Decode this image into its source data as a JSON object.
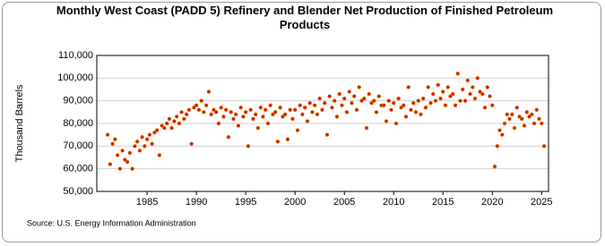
{
  "chart_data": {
    "type": "scatter",
    "title": "Monthly West Coast (PADD 5) Refinery and Blender Net Production of Finished Petroleum Products",
    "y_label": "Thousand Barrels",
    "source": "Source: U.S. Energy Information Administration",
    "color": "#cc2200",
    "grid": true,
    "xlim": [
      1979.9,
      2025.7
    ],
    "xticks": [
      1985,
      1990,
      1995,
      2000,
      2005,
      2010,
      2015,
      2020,
      2025
    ],
    "ylim": [
      50000,
      110000
    ],
    "yticks": [
      {
        "value": 50000,
        "label": "50,000"
      },
      {
        "value": 60000,
        "label": "60,000"
      },
      {
        "value": 70000,
        "label": "70,000"
      },
      {
        "value": 80000,
        "label": "80,000"
      },
      {
        "value": 90000,
        "label": "90,000"
      },
      {
        "value": 100000,
        "label": "100,000"
      },
      {
        "value": 110000,
        "label": "110,000"
      }
    ],
    "x": [
      1981,
      1981.25,
      1981.5,
      1981.75,
      1982,
      1982.25,
      1982.5,
      1982.75,
      1983,
      1983.25,
      1983.5,
      1983.75,
      1984,
      1984.25,
      1984.5,
      1984.75,
      1985,
      1985.25,
      1985.5,
      1985.75,
      1986,
      1986.25,
      1986.5,
      1986.75,
      1987,
      1987.25,
      1987.5,
      1987.75,
      1988,
      1988.25,
      1988.5,
      1988.75,
      1989,
      1989.25,
      1989.5,
      1989.75,
      1990,
      1990.25,
      1990.5,
      1990.75,
      1991,
      1991.25,
      1991.5,
      1991.75,
      1992,
      1992.25,
      1992.5,
      1992.75,
      1993,
      1993.25,
      1993.5,
      1993.75,
      1994,
      1994.25,
      1994.5,
      1994.75,
      1995,
      1995.25,
      1995.5,
      1995.75,
      1996,
      1996.25,
      1996.5,
      1996.75,
      1997,
      1997.25,
      1997.5,
      1997.75,
      1998,
      1998.25,
      1998.5,
      1998.75,
      1999,
      1999.25,
      1999.5,
      1999.75,
      2000,
      2000.25,
      2000.5,
      2000.75,
      2001,
      2001.25,
      2001.5,
      2001.75,
      2002,
      2002.25,
      2002.5,
      2002.75,
      2003,
      2003.25,
      2003.5,
      2003.75,
      2004,
      2004.25,
      2004.5,
      2004.75,
      2005,
      2005.25,
      2005.5,
      2005.75,
      2006,
      2006.25,
      2006.5,
      2006.75,
      2007,
      2007.25,
      2007.5,
      2007.75,
      2008,
      2008.25,
      2008.5,
      2008.75,
      2009,
      2009.25,
      2009.5,
      2009.75,
      2010,
      2010.25,
      2010.5,
      2010.75,
      2011,
      2011.25,
      2011.5,
      2011.75,
      2012,
      2012.25,
      2012.5,
      2012.75,
      2013,
      2013.25,
      2013.5,
      2013.75,
      2014,
      2014.25,
      2014.5,
      2014.75,
      2015,
      2015.25,
      2015.5,
      2015.75,
      2016,
      2016.25,
      2016.5,
      2016.75,
      2017,
      2017.25,
      2017.5,
      2017.75,
      2018,
      2018.25,
      2018.5,
      2018.75,
      2019,
      2019.25,
      2019.5,
      2019.75,
      2020,
      2020.25,
      2020.5,
      2020.75,
      2021,
      2021.25,
      2021.5,
      2021.75,
      2022,
      2022.25,
      2022.5,
      2022.75,
      2023,
      2023.25,
      2023.5,
      2023.75,
      2024,
      2024.25,
      2024.5,
      2024.75,
      2025,
      2025.25
    ],
    "values": [
      75000,
      62000,
      71000,
      73000,
      66000,
      60000,
      68000,
      64000,
      63000,
      67000,
      60000,
      70000,
      72000,
      68000,
      74000,
      70000,
      73000,
      75000,
      71000,
      76000,
      77000,
      66000,
      79000,
      78000,
      80000,
      82000,
      78000,
      81000,
      83000,
      80000,
      85000,
      82000,
      84000,
      86000,
      71000,
      87000,
      88000,
      86000,
      90000,
      85000,
      88000,
      94000,
      84000,
      86000,
      85000,
      80000,
      87000,
      83000,
      86000,
      74000,
      85000,
      82000,
      84000,
      79000,
      87000,
      83000,
      85000,
      70000,
      86000,
      82000,
      84000,
      78000,
      87000,
      83000,
      86000,
      80000,
      88000,
      84000,
      85000,
      72000,
      87000,
      83000,
      84000,
      73000,
      86000,
      82000,
      86000,
      77000,
      88000,
      84000,
      87000,
      81000,
      89000,
      85000,
      88000,
      84000,
      91000,
      86000,
      89000,
      75000,
      92000,
      87000,
      90000,
      83000,
      93000,
      88000,
      91000,
      85000,
      94000,
      89000,
      92000,
      86000,
      96000,
      90000,
      91000,
      78000,
      93000,
      89000,
      90000,
      85000,
      92000,
      88000,
      88000,
      81000,
      90000,
      86000,
      89000,
      80000,
      91000,
      87000,
      88000,
      83000,
      96000,
      86000,
      89000,
      85000,
      90000,
      84000,
      91000,
      87000,
      96000,
      89000,
      93000,
      90000,
      97000,
      91000,
      94000,
      88000,
      96000,
      92000,
      93000,
      88000,
      102000,
      90000,
      95000,
      90000,
      99000,
      93000,
      96000,
      91000,
      100000,
      94000,
      93000,
      87000,
      96000,
      92000,
      88000,
      61000,
      70000,
      77000,
      75000,
      80000,
      84000,
      82000,
      84000,
      78000,
      87000,
      83000,
      82000,
      79000,
      85000,
      83000,
      84000,
      80000,
      86000,
      82000,
      80000,
      70000
    ]
  }
}
